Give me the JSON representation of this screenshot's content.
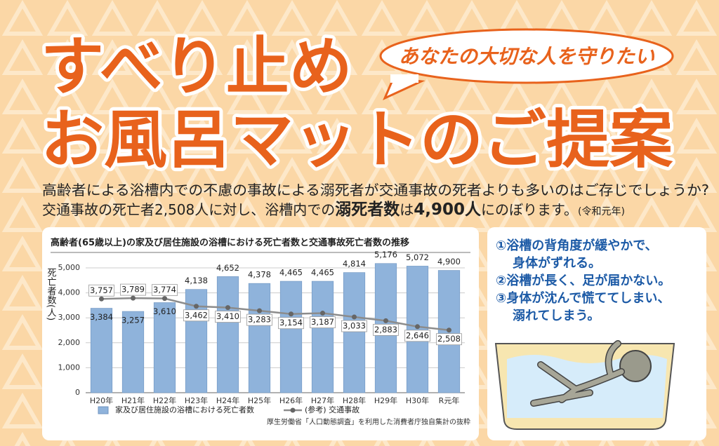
{
  "header": {
    "title_lines": [
      "すべり止め",
      "お風呂マットのご提案"
    ],
    "bubble": "あなたの大切な人を守りたい"
  },
  "intro": {
    "line1": "高齢者による浴槽内での不慮の事故による溺死者が交通事故の死者よりも多いのはご存じでしょうか?",
    "line2": [
      "交通事故の死亡者2,508人に対し、浴槽内での",
      "溺死者数",
      "は",
      "4,900人",
      "にのぼります。",
      "(令和元年)"
    ]
  },
  "chart_data": {
    "type": "bar",
    "title": "高齢者(65歳以上)の家及び居住施設の浴槽における死亡者数と交通事故死亡者数の推移",
    "y_label": "死亡者数(人)",
    "categories": [
      "H20年",
      "H21年",
      "H22年",
      "H23年",
      "H24年",
      "H25年",
      "H26年",
      "H27年",
      "H28年",
      "H29年",
      "H30年",
      "R元年"
    ],
    "series": [
      {
        "name": "家及び居住施設の浴槽における死亡者数",
        "type": "bar",
        "color": "#8fb3db",
        "values": [
          3384,
          3257,
          3610,
          4138,
          4652,
          4378,
          4465,
          4465,
          4814,
          5176,
          5072,
          4900
        ],
        "value_labels": [
          "3,384",
          "3,257",
          "3,610",
          "4,138",
          "4,652",
          "4,378",
          "4,465",
          "4,465",
          "4,814",
          "5,176",
          "5,072",
          "4,900"
        ]
      },
      {
        "name": "(参考) 交通事故",
        "type": "line",
        "color": "#8c8c8c",
        "values": [
          3757,
          3789,
          3774,
          3462,
          3410,
          3283,
          3154,
          3187,
          3033,
          2883,
          2646,
          2508
        ],
        "value_labels": [
          "3,757",
          "3,789",
          "3,774",
          "3,462",
          "3,410",
          "3,283",
          "3,154",
          "3,187",
          "3,033",
          "2,883",
          "2,646",
          "2,508"
        ]
      }
    ],
    "ylim": [
      0,
      5000
    ],
    "yticks": [
      0,
      {
        "value": 1000,
        "label": "1,000"
      },
      {
        "value": 2000,
        "label": "2,000"
      },
      {
        "value": 3000,
        "label": "3,000"
      },
      {
        "value": 4000,
        "label": "4,000"
      },
      {
        "value": 5000,
        "label": "5,000"
      }
    ],
    "grid": true,
    "source": "厚生労働省「人口動態調査」を利用した消費者庁独自集計の抜粋"
  },
  "reasons": [
    [
      "①浴槽の背角度が緩やかで、",
      "身体がずれる。"
    ],
    [
      "②浴槽が長く、足が届かない。"
    ],
    [
      "③身体が沈んで慌ててしまい、",
      "溺れてしまう。"
    ]
  ]
}
